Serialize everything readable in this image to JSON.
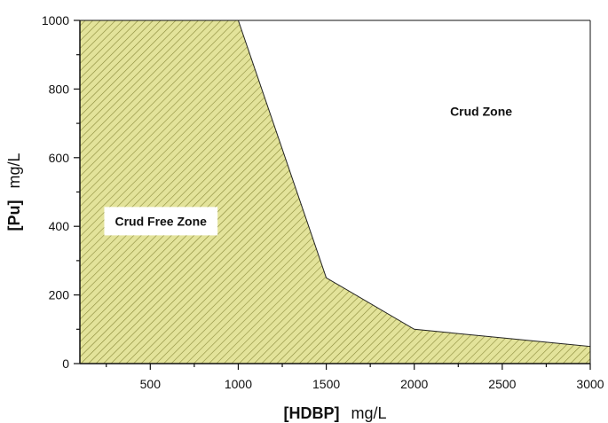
{
  "chart_data": {
    "type": "area",
    "title": "",
    "xlabel_bold": "[HDBP]",
    "xlabel_unit": "mg/L",
    "ylabel_bold": "[Pu]",
    "ylabel_unit": "mg/L",
    "xlim": [
      100,
      3000
    ],
    "ylim": [
      0,
      1000
    ],
    "x_ticks": [
      500,
      1000,
      1500,
      2000,
      2500,
      3000
    ],
    "y_ticks": [
      0,
      200,
      400,
      600,
      800,
      1000
    ],
    "series": [
      {
        "x": [
          100,
          1000,
          1500,
          2000,
          3000
        ],
        "y": [
          1000,
          1000,
          250,
          100,
          50
        ]
      }
    ],
    "fill_color": "#e3e39a",
    "hatch_color": "#8a8a3a",
    "annotations": [
      {
        "text": "Crud Free Zone",
        "x": 560,
        "y": 415
      },
      {
        "text": "Crud Zone",
        "x": 2380,
        "y": 735
      }
    ],
    "grid": false,
    "legend": "none"
  }
}
